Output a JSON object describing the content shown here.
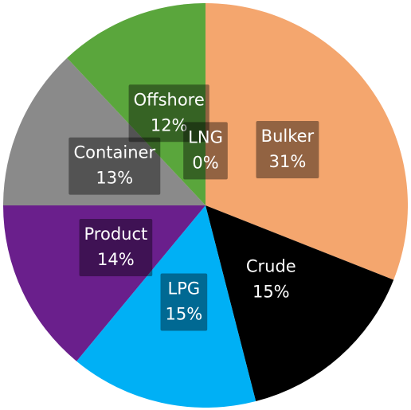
{
  "chart_data": {
    "type": "pie",
    "categories": [
      "Bulker",
      "Crude",
      "LPG",
      "Product",
      "Container",
      "Offshore",
      "LNG"
    ],
    "values": [
      31,
      15,
      15,
      14,
      13,
      12,
      0
    ],
    "value_labels": [
      "31%",
      "15%",
      "15%",
      "14%",
      "13%",
      "12%",
      "0%"
    ],
    "colors": [
      "#f4a66e",
      "#000000",
      "#00b0f5",
      "#6a1f8c",
      "#8a8a8a",
      "#5aa63c",
      "#a6e05a"
    ]
  }
}
